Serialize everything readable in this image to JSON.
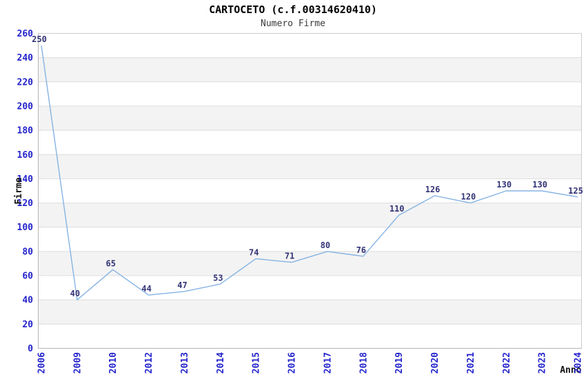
{
  "chart_data": {
    "type": "line",
    "title": "CARTOCETO (c.f.00314620410)",
    "subtitle": "Numero Firme",
    "ylabel": "Firme",
    "xlabel": "Anno",
    "categories": [
      "2006",
      "2009",
      "2010",
      "2012",
      "2013",
      "2014",
      "2015",
      "2016",
      "2017",
      "2018",
      "2019",
      "2020",
      "2021",
      "2022",
      "2023",
      "2024"
    ],
    "values": [
      250,
      40,
      65,
      44,
      47,
      53,
      74,
      71,
      80,
      76,
      110,
      126,
      120,
      130,
      130,
      125
    ],
    "ylim": [
      0,
      260
    ],
    "yticks": [
      0,
      20,
      40,
      60,
      80,
      100,
      120,
      140,
      160,
      180,
      200,
      220,
      240,
      260
    ],
    "grid": true,
    "band_pattern": "alternating 20-unit gray bands from 20-40 up to 220-240",
    "legend": "none",
    "colors": {
      "line": "#85b3e3",
      "data_label": "#333377",
      "tick_label": "#2424cc",
      "band": "#f3f3f3",
      "gridline": "#dddddd",
      "axis": "#b4b4b4",
      "plot_border": "#cccccc",
      "title": "#000000",
      "subtitle": "#3a3a3a",
      "axis_title": "#111111"
    }
  }
}
